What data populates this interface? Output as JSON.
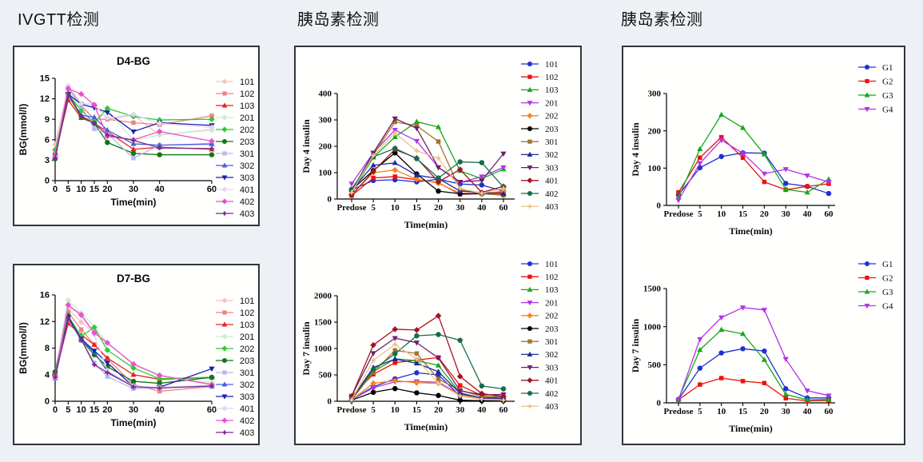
{
  "page": {
    "background": "#edf1f5",
    "panel_background": "#fffffe",
    "panel_border": "#33343a"
  },
  "headers": [
    {
      "text": "IVGTT检测"
    },
    {
      "text": "胰岛素检测"
    },
    {
      "text": "胰岛素检测"
    }
  ],
  "chart_data": [
    {
      "type": "line",
      "title": "D4-BG",
      "xlabel": "Time(min)",
      "ylabel": "BG(mmol/l)",
      "x_mode": "linear",
      "x": [
        0,
        5,
        10,
        15,
        20,
        30,
        40,
        60
      ],
      "x_ticklabels": [
        "0",
        "5",
        "10",
        "15",
        "20",
        "30",
        "40",
        "60"
      ],
      "xlim": [
        0,
        60
      ],
      "ylim": [
        0,
        15
      ],
      "yticks": [
        0,
        3,
        6,
        9,
        12,
        15
      ],
      "grid": false,
      "legend_position": "right",
      "series": [
        {
          "name": "101",
          "color": "#f4c5c5",
          "marker": "diamond",
          "values": [
            5.3,
            13.8,
            11.3,
            11.2,
            9.0,
            9.6,
            6.7,
            7.5
          ]
        },
        {
          "name": "102",
          "color": "#f08080",
          "marker": "square",
          "values": [
            3.9,
            13.7,
            11.0,
            9.0,
            9.0,
            8.5,
            8.2,
            9.5
          ]
        },
        {
          "name": "103",
          "color": "#e42421",
          "marker": "triangle-up",
          "values": [
            3.8,
            11.8,
            9.2,
            8.4,
            7.2,
            4.6,
            4.9,
            4.6
          ]
        },
        {
          "name": "201",
          "color": "#c9eec9",
          "marker": "diamond",
          "values": [
            4.6,
            12.9,
            10.4,
            8.3,
            10.4,
            5.9,
            6.7,
            7.4
          ]
        },
        {
          "name": "202",
          "color": "#2ecc2e",
          "marker": "diamond",
          "values": [
            4.5,
            12.6,
            10.3,
            8.5,
            10.6,
            9.4,
            8.9,
            9.0
          ]
        },
        {
          "name": "203",
          "color": "#137713",
          "marker": "circle",
          "values": [
            3.2,
            12.5,
            9.4,
            8.4,
            5.6,
            4.0,
            3.8,
            3.8
          ]
        },
        {
          "name": "301",
          "color": "#b3baee",
          "marker": "square",
          "values": [
            3.5,
            13.5,
            10.9,
            7.6,
            6.9,
            3.3,
            5.2,
            5.3
          ]
        },
        {
          "name": "302",
          "color": "#4a5fd6",
          "marker": "triangle-up",
          "values": [
            3.6,
            12.6,
            9.6,
            9.3,
            7.4,
            5.4,
            5.2,
            5.4
          ]
        },
        {
          "name": "303",
          "color": "#1b1fae",
          "marker": "triangle-down",
          "values": [
            3.7,
            12.7,
            11.2,
            10.7,
            10.0,
            7.2,
            8.5,
            8.1
          ]
        },
        {
          "name": "401",
          "color": "#e3d4f2",
          "marker": "diamond",
          "values": [
            3.6,
            13.9,
            11.3,
            11.1,
            9.2,
            9.7,
            8.4,
            7.8
          ]
        },
        {
          "name": "402",
          "color": "#ec50cf",
          "marker": "diamond",
          "values": [
            3.7,
            13.5,
            12.7,
            11.1,
            6.5,
            6.0,
            7.2,
            5.8
          ]
        },
        {
          "name": "403",
          "color": "#7c2a8f",
          "marker": "star",
          "values": [
            3.3,
            12.8,
            9.5,
            8.4,
            6.7,
            5.9,
            4.8,
            4.7
          ]
        }
      ]
    },
    {
      "type": "line",
      "title": "D7-BG",
      "xlabel": "Time(min)",
      "ylabel": "BG(mmol/l)",
      "x_mode": "linear",
      "x": [
        0,
        5,
        10,
        15,
        20,
        30,
        40,
        60
      ],
      "x_ticklabels": [
        "0",
        "5",
        "10",
        "15",
        "20",
        "30",
        "40",
        "60"
      ],
      "xlim": [
        0,
        60
      ],
      "ylim": [
        0,
        16
      ],
      "yticks": [
        0,
        4,
        8,
        12,
        16
      ],
      "grid": false,
      "legend_position": "right",
      "series": [
        {
          "name": "101",
          "color": "#f4c5c5",
          "marker": "diamond",
          "values": [
            4.2,
            13.9,
            11.9,
            10.3,
            8.8,
            5.5,
            3.8,
            2.6
          ]
        },
        {
          "name": "102",
          "color": "#f08080",
          "marker": "square",
          "values": [
            4.1,
            13.4,
            10.8,
            8.5,
            6.4,
            2.5,
            1.5,
            2.2
          ]
        },
        {
          "name": "103",
          "color": "#e42421",
          "marker": "triangle-up",
          "values": [
            4.0,
            11.7,
            10.0,
            8.5,
            6.5,
            4.0,
            3.3,
            3.6
          ]
        },
        {
          "name": "201",
          "color": "#c9eec9",
          "marker": "diamond",
          "values": [
            4.5,
            15.2,
            13.3,
            11.2,
            8.8,
            5.6,
            3.8,
            2.8
          ]
        },
        {
          "name": "202",
          "color": "#2ecc2e",
          "marker": "diamond",
          "values": [
            4.5,
            12.8,
            9.8,
            11.1,
            7.7,
            5.0,
            3.4,
            3.6
          ]
        },
        {
          "name": "203",
          "color": "#137713",
          "marker": "circle",
          "values": [
            4.4,
            12.9,
            9.2,
            7.0,
            5.2,
            3.0,
            2.7,
            3.6
          ]
        },
        {
          "name": "301",
          "color": "#b3baee",
          "marker": "square",
          "values": [
            3.5,
            12.5,
            9.3,
            5.8,
            3.7,
            1.9,
            2.0,
            2.2
          ]
        },
        {
          "name": "302",
          "color": "#4a5fd6",
          "marker": "triangle-up",
          "values": [
            3.5,
            12.4,
            9.2,
            7.4,
            4.5,
            2.2,
            2.1,
            2.3
          ]
        },
        {
          "name": "303",
          "color": "#1b1fae",
          "marker": "triangle-down",
          "values": [
            3.6,
            12.6,
            9.4,
            7.6,
            5.8,
            2.2,
            2.1,
            4.9
          ]
        },
        {
          "name": "401",
          "color": "#e3d4f2",
          "marker": "diamond",
          "values": [
            3.6,
            14.3,
            12.9,
            10.0,
            4.6,
            2.3,
            2.1,
            2.4
          ]
        },
        {
          "name": "402",
          "color": "#ec50cf",
          "marker": "diamond",
          "values": [
            3.7,
            14.5,
            13.0,
            10.3,
            8.8,
            5.6,
            3.9,
            2.5
          ]
        },
        {
          "name": "403",
          "color": "#7c2a8f",
          "marker": "star",
          "values": [
            3.6,
            12.5,
            9.3,
            5.5,
            4.3,
            2.2,
            2.0,
            2.3
          ]
        }
      ]
    },
    {
      "type": "line",
      "title": "",
      "xlabel": "Time(min)",
      "ylabel": "Day 4 insulin",
      "x_mode": "categorical",
      "categories": [
        "Predose",
        "5",
        "10",
        "15",
        "20",
        "30",
        "40",
        "60"
      ],
      "ylim": [
        0,
        400
      ],
      "yticks": [
        0,
        100,
        200,
        300,
        400
      ],
      "grid": false,
      "legend_position": "right",
      "series": [
        {
          "name": "101",
          "color": "#2030d0",
          "marker": "circle",
          "values": [
            35,
            70,
            73,
            65,
            75,
            57,
            53,
            30
          ]
        },
        {
          "name": "102",
          "color": "#ee1010",
          "marker": "square",
          "values": [
            13,
            80,
            85,
            73,
            62,
            18,
            20,
            25
          ]
        },
        {
          "name": "103",
          "color": "#18a818",
          "marker": "triangle-up",
          "values": [
            25,
            158,
            235,
            293,
            273,
            107,
            77,
            113
          ]
        },
        {
          "name": "201",
          "color": "#b233e6",
          "marker": "triangle-down",
          "values": [
            58,
            175,
            262,
            220,
            120,
            62,
            85,
            120
          ]
        },
        {
          "name": "202",
          "color": "#f5831c",
          "marker": "diamond",
          "values": [
            18,
            100,
            110,
            75,
            60,
            22,
            20,
            30
          ]
        },
        {
          "name": "203",
          "color": "#000000",
          "marker": "circle",
          "values": [
            35,
            108,
            175,
            95,
            30,
            20,
            20,
            15
          ]
        },
        {
          "name": "301",
          "color": "#a4752c",
          "marker": "square",
          "values": [
            30,
            168,
            292,
            278,
            218,
            35,
            20,
            15
          ]
        },
        {
          "name": "302",
          "color": "#1c2a96",
          "marker": "triangle-up",
          "values": [
            35,
            128,
            137,
            90,
            78,
            30,
            25,
            20
          ]
        },
        {
          "name": "303",
          "color": "#6d2069",
          "marker": "triangle-down",
          "values": [
            30,
            175,
            305,
            268,
            120,
            65,
            70,
            172
          ]
        },
        {
          "name": "401",
          "color": "#a31320",
          "marker": "diamond",
          "values": [
            15,
            105,
            188,
            155,
            65,
            112,
            25,
            48
          ]
        },
        {
          "name": "402",
          "color": "#176b4d",
          "marker": "circle",
          "values": [
            37,
            160,
            192,
            153,
            80,
            141,
            138,
            45
          ]
        },
        {
          "name": "403",
          "color": "#eec08e",
          "marker": "star",
          "values": [
            25,
            165,
            250,
            183,
            155,
            40,
            22,
            40
          ]
        }
      ]
    },
    {
      "type": "line",
      "title": "",
      "xlabel": "Time(min)",
      "ylabel": "Day 7 insulin",
      "x_mode": "categorical",
      "categories": [
        "Predose",
        "5",
        "10",
        "15",
        "20",
        "30",
        "40",
        "60"
      ],
      "ylim": [
        0,
        2000
      ],
      "yticks": [
        0,
        500,
        1000,
        1500,
        2000
      ],
      "grid": false,
      "legend_position": "right",
      "series": [
        {
          "name": "101",
          "color": "#2030d0",
          "marker": "circle",
          "values": [
            30,
            275,
            425,
            540,
            500,
            100,
            40,
            30
          ]
        },
        {
          "name": "102",
          "color": "#ee1010",
          "marker": "square",
          "values": [
            95,
            510,
            730,
            780,
            830,
            300,
            110,
            30
          ]
        },
        {
          "name": "103",
          "color": "#18a818",
          "marker": "triangle-up",
          "values": [
            30,
            560,
            805,
            770,
            680,
            160,
            60,
            90
          ]
        },
        {
          "name": "201",
          "color": "#b233e6",
          "marker": "triangle-down",
          "values": [
            30,
            255,
            370,
            375,
            360,
            130,
            50,
            40
          ]
        },
        {
          "name": "202",
          "color": "#f5831c",
          "marker": "diamond",
          "values": [
            25,
            340,
            390,
            350,
            340,
            120,
            50,
            25
          ]
        },
        {
          "name": "203",
          "color": "#000000",
          "marker": "circle",
          "values": [
            20,
            170,
            240,
            160,
            110,
            20,
            10,
            10
          ]
        },
        {
          "name": "301",
          "color": "#a4752c",
          "marker": "square",
          "values": [
            30,
            545,
            965,
            905,
            420,
            210,
            90,
            90
          ]
        },
        {
          "name": "302",
          "color": "#1c2a96",
          "marker": "triangle-up",
          "values": [
            40,
            640,
            800,
            720,
            560,
            150,
            60,
            60
          ]
        },
        {
          "name": "303",
          "color": "#6d2069",
          "marker": "triangle-down",
          "values": [
            100,
            910,
            1195,
            1110,
            820,
            200,
            120,
            130
          ]
        },
        {
          "name": "401",
          "color": "#a31320",
          "marker": "diamond",
          "values": [
            95,
            1065,
            1365,
            1350,
            1620,
            470,
            145,
            90
          ]
        },
        {
          "name": "402",
          "color": "#176b4d",
          "marker": "circle",
          "values": [
            30,
            600,
            900,
            1240,
            1265,
            1155,
            290,
            235
          ]
        },
        {
          "name": "403",
          "color": "#eec08e",
          "marker": "star",
          "values": [
            25,
            775,
            1080,
            800,
            340,
            100,
            40,
            20
          ]
        }
      ]
    },
    {
      "type": "line",
      "title": "",
      "xlabel": "Time(min)",
      "ylabel": "Day 4 insulin",
      "x_mode": "categorical",
      "categories": [
        "Predose",
        "5",
        "10",
        "15",
        "20",
        "30",
        "40",
        "60"
      ],
      "ylim": [
        0,
        300
      ],
      "yticks": [
        0,
        100,
        200,
        300
      ],
      "grid": false,
      "legend_position": "right",
      "series": [
        {
          "name": "G1",
          "color": "#2030d0",
          "marker": "circle",
          "values": [
            28,
            101,
            131,
            141,
            140,
            59,
            51,
            32
          ]
        },
        {
          "name": "G2",
          "color": "#ee1010",
          "marker": "square",
          "values": [
            35,
            128,
            183,
            128,
            63,
            42,
            51,
            58
          ]
        },
        {
          "name": "G3",
          "color": "#18a818",
          "marker": "triangle-up",
          "values": [
            22,
            151,
            243,
            208,
            137,
            43,
            35,
            70
          ]
        },
        {
          "name": "G4",
          "color": "#b233e6",
          "marker": "triangle-down",
          "values": [
            14,
            113,
            175,
            140,
            85,
            97,
            80,
            63
          ]
        }
      ]
    },
    {
      "type": "line",
      "title": "",
      "xlabel": "Time(min)",
      "ylabel": "Day 7 insulin",
      "x_mode": "categorical",
      "categories": [
        "Predose",
        "5",
        "10",
        "15",
        "20",
        "30",
        "40",
        "60"
      ],
      "ylim": [
        0,
        1500
      ],
      "yticks": [
        0,
        500,
        1000,
        1500
      ],
      "grid": false,
      "legend_position": "right",
      "series": [
        {
          "name": "G1",
          "color": "#2030d0",
          "marker": "circle",
          "values": [
            45,
            455,
            655,
            710,
            680,
            185,
            65,
            65
          ]
        },
        {
          "name": "G2",
          "color": "#ee1010",
          "marker": "square",
          "values": [
            40,
            240,
            325,
            285,
            260,
            60,
            25,
            30
          ]
        },
        {
          "name": "G3",
          "color": "#18a818",
          "marker": "triangle-up",
          "values": [
            50,
            695,
            960,
            905,
            565,
            110,
            40,
            45
          ]
        },
        {
          "name": "G4",
          "color": "#b233e6",
          "marker": "triangle-down",
          "values": [
            40,
            835,
            1120,
            1250,
            1220,
            575,
            160,
            95
          ]
        }
      ]
    }
  ]
}
